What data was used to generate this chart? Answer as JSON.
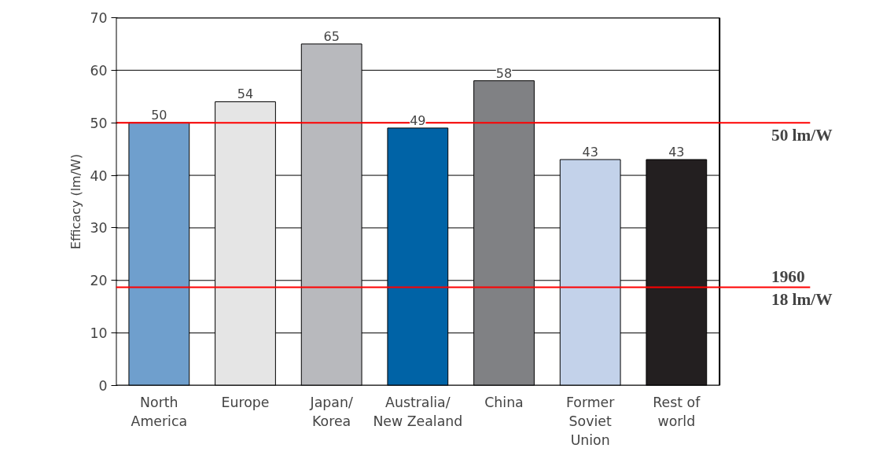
{
  "chart_data": {
    "type": "bar",
    "ylabel": "Efficacy (lm/W)",
    "categories": [
      "North\nAmerica",
      "Europe",
      "Japan/\nKorea",
      "Australia/\nNew Zealand",
      "China",
      "Former\nSoviet\nUnion",
      "Rest of\nworld"
    ],
    "values": [
      50,
      54,
      65,
      49,
      58,
      43,
      43
    ],
    "colors": [
      "#6f9fcd",
      "#e5e5e5",
      "#b8b9bd",
      "#0063a6",
      "#808184",
      "#c3d2ea",
      "#231f20"
    ],
    "ylim": [
      0,
      70
    ],
    "yticks": [
      0,
      10,
      20,
      30,
      40,
      50,
      60,
      70
    ],
    "grid": "y",
    "data_labels": true,
    "ref_lines": [
      {
        "axis": "y",
        "value": 50,
        "label": "50 lm/W",
        "color": "#ff0000"
      },
      {
        "axis": "y",
        "value": 18.7,
        "label": "1960\n18 lm/W",
        "color": "#ff0000"
      }
    ]
  }
}
